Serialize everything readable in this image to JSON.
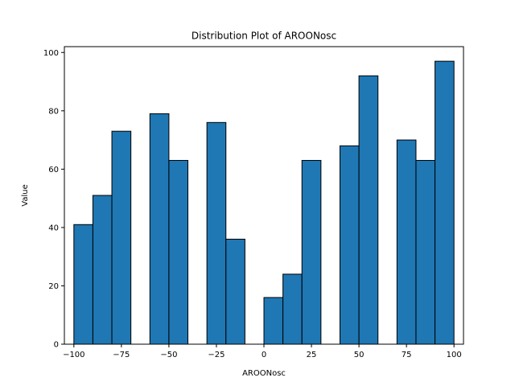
{
  "chart_data": {
    "type": "bar",
    "title": "Distribution Plot of AROONosc",
    "xlabel": "AROONosc",
    "ylabel": "Value",
    "xlim": [
      -105,
      105
    ],
    "ylim": [
      0,
      102
    ],
    "x_ticks": [
      -100,
      -75,
      -50,
      -25,
      0,
      25,
      50,
      75,
      100
    ],
    "x_tick_labels": [
      "−100",
      "−75",
      "−50",
      "−25",
      "0",
      "25",
      "50",
      "75",
      "100"
    ],
    "y_ticks": [
      0,
      20,
      40,
      60,
      80,
      100
    ],
    "y_tick_labels": [
      "0",
      "20",
      "40",
      "60",
      "80",
      "100"
    ],
    "bin_edges": [
      -100,
      -90,
      -80,
      -70,
      -60,
      -50,
      -40,
      -30,
      -20,
      -10,
      0,
      10,
      20,
      30,
      40,
      50,
      60,
      70,
      80,
      90,
      100
    ],
    "values": [
      41,
      51,
      73,
      0,
      79,
      63,
      0,
      76,
      36,
      0,
      16,
      24,
      63,
      0,
      68,
      92,
      0,
      70,
      63,
      97
    ],
    "bar_color": "#1f77b4",
    "edge_color": "#000000",
    "grid": false,
    "legend": null
  }
}
